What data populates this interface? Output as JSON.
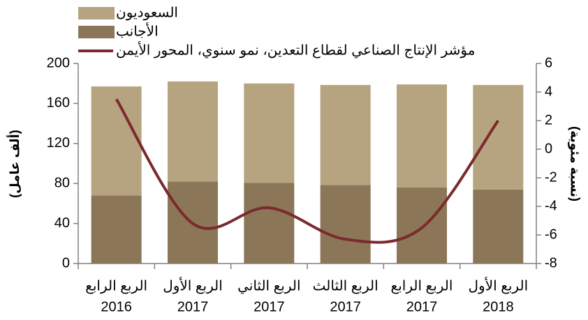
{
  "chart_data": {
    "type": "bar-line",
    "categories": [
      [
        "الربع الرابع",
        "2016"
      ],
      [
        "الربع الأول",
        "2017"
      ],
      [
        "الربع الثاني",
        "2017"
      ],
      [
        "الربع الثالث",
        "2017"
      ],
      [
        "الربع الرابع",
        "2017"
      ],
      [
        "الربع الأول",
        "2018"
      ]
    ],
    "series": [
      {
        "name": "السعوديون",
        "color": "#b5a47f",
        "values": [
          109,
          100,
          99.5,
          100,
          103,
          104.5
        ]
      },
      {
        "name": "الأجانب",
        "color": "#8b7657",
        "values": [
          68,
          82,
          80.5,
          78.5,
          76,
          74
        ]
      },
      {
        "name": "مؤشر الإنتاج الصناعي لقطاع التعدين، نمو سنوي، المحور الأيمن",
        "color": "#7b2a2e",
        "values": [
          3.5,
          -5.2,
          -4.1,
          -6.3,
          -5.5,
          2.0
        ],
        "axis": "y2"
      }
    ],
    "ylabel": "(ألف عامل)",
    "y2label": "(نسبة مئوية)",
    "ylim": [
      0,
      200
    ],
    "yticks": [
      0,
      40,
      80,
      120,
      160,
      200
    ],
    "y2lim": [
      -8,
      6
    ],
    "y2ticks": [
      -8,
      -6,
      -4,
      -2,
      0,
      2,
      4,
      6
    ],
    "legend": "top-left"
  }
}
